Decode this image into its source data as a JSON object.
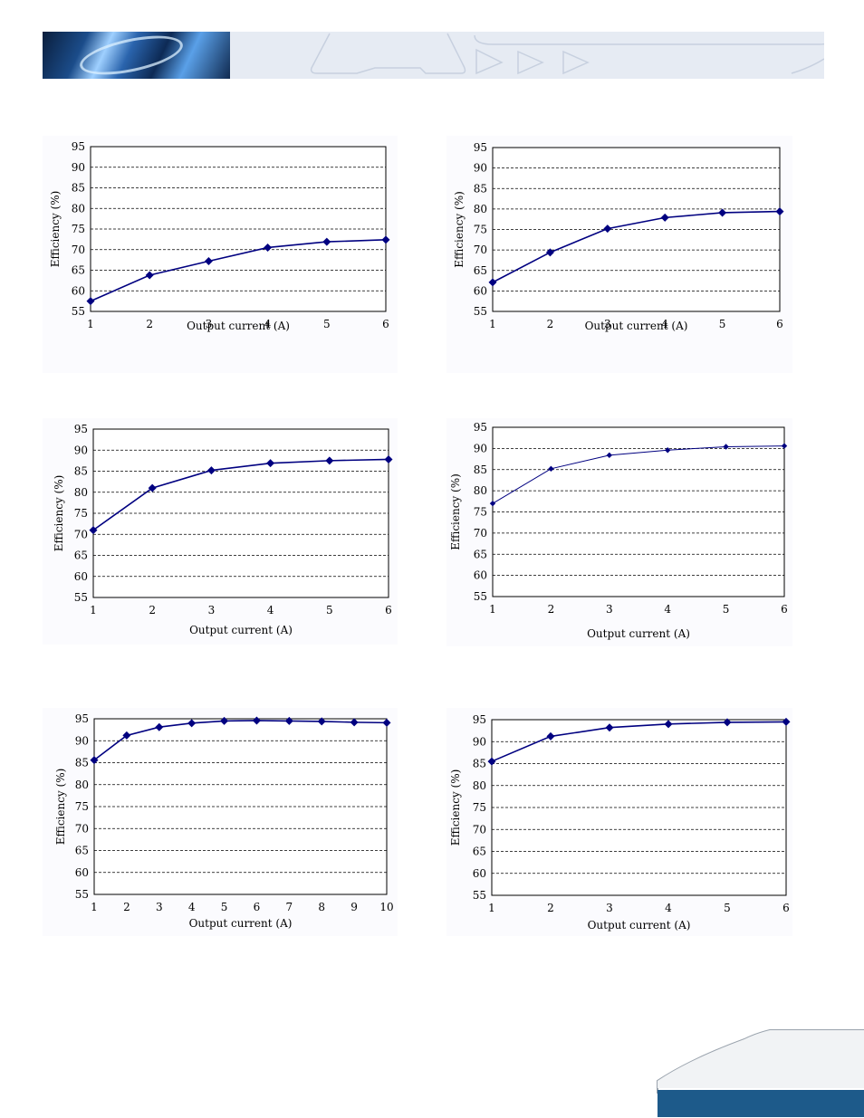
{
  "colors": {
    "series": "#000080",
    "banner": "#e6ebf3",
    "footer_bar": "#1d5a8a"
  },
  "chart_data": [
    {
      "type": "line",
      "x": [
        1,
        2,
        3,
        4,
        5,
        6
      ],
      "series": [
        {
          "values": [
            57.5,
            63.8,
            67.2,
            70.5,
            71.9,
            72.4
          ]
        }
      ],
      "xlabel": "Output current (A)",
      "ylabel": "Efficiency (%)",
      "ylim": [
        55,
        95
      ],
      "yticks": [
        55,
        60,
        65,
        70,
        75,
        80,
        85,
        90,
        95
      ],
      "grid": true
    },
    {
      "type": "line",
      "x": [
        1,
        2,
        3,
        4,
        5,
        6
      ],
      "series": [
        {
          "values": [
            62.1,
            69.4,
            75.2,
            77.9,
            79.1,
            79.4
          ]
        }
      ],
      "xlabel": "Output current (A)",
      "ylabel": "Efficiency (%)",
      "ylim": [
        55,
        95
      ],
      "yticks": [
        55,
        60,
        65,
        70,
        75,
        80,
        85,
        90,
        95
      ],
      "grid": true
    },
    {
      "type": "line",
      "x": [
        1,
        2,
        3,
        4,
        5,
        6
      ],
      "series": [
        {
          "values": [
            71.0,
            81.0,
            85.2,
            86.9,
            87.5,
            87.8
          ]
        }
      ],
      "xlabel": "Output current (A)",
      "ylabel": "Efficiency (%)",
      "ylim": [
        55,
        95
      ],
      "yticks": [
        55,
        60,
        65,
        70,
        75,
        80,
        85,
        90,
        95
      ],
      "grid": true
    },
    {
      "type": "line",
      "x": [
        1,
        2,
        3,
        4,
        5,
        6
      ],
      "series": [
        {
          "values": [
            77.0,
            85.2,
            88.4,
            89.6,
            90.4,
            90.6
          ]
        }
      ],
      "xlabel": "Output current (A)",
      "ylabel": "Efficiency (%)",
      "ylim": [
        55,
        95
      ],
      "yticks": [
        55,
        60,
        65,
        70,
        75,
        80,
        85,
        90,
        95
      ],
      "grid": true
    },
    {
      "type": "line",
      "x": [
        1,
        2,
        3,
        4,
        5,
        6,
        7,
        8,
        9,
        10
      ],
      "series": [
        {
          "values": [
            85.6,
            91.2,
            93.1,
            94.0,
            94.5,
            94.6,
            94.5,
            94.4,
            94.2,
            94.1
          ]
        }
      ],
      "xlabel": "Output current (A)",
      "ylabel": "Efficiency (%)",
      "ylim": [
        55,
        95
      ],
      "yticks": [
        55,
        60,
        65,
        70,
        75,
        80,
        85,
        90,
        95
      ],
      "grid": true
    },
    {
      "type": "line",
      "x": [
        1,
        2,
        3,
        4,
        5,
        6
      ],
      "series": [
        {
          "values": [
            85.5,
            91.2,
            93.2,
            94.0,
            94.4,
            94.5
          ]
        }
      ],
      "xlabel": "Output current (A)",
      "ylabel": "Efficiency (%)",
      "ylim": [
        55,
        95
      ],
      "yticks": [
        55,
        60,
        65,
        70,
        75,
        80,
        85,
        90,
        95
      ],
      "grid": true
    }
  ]
}
